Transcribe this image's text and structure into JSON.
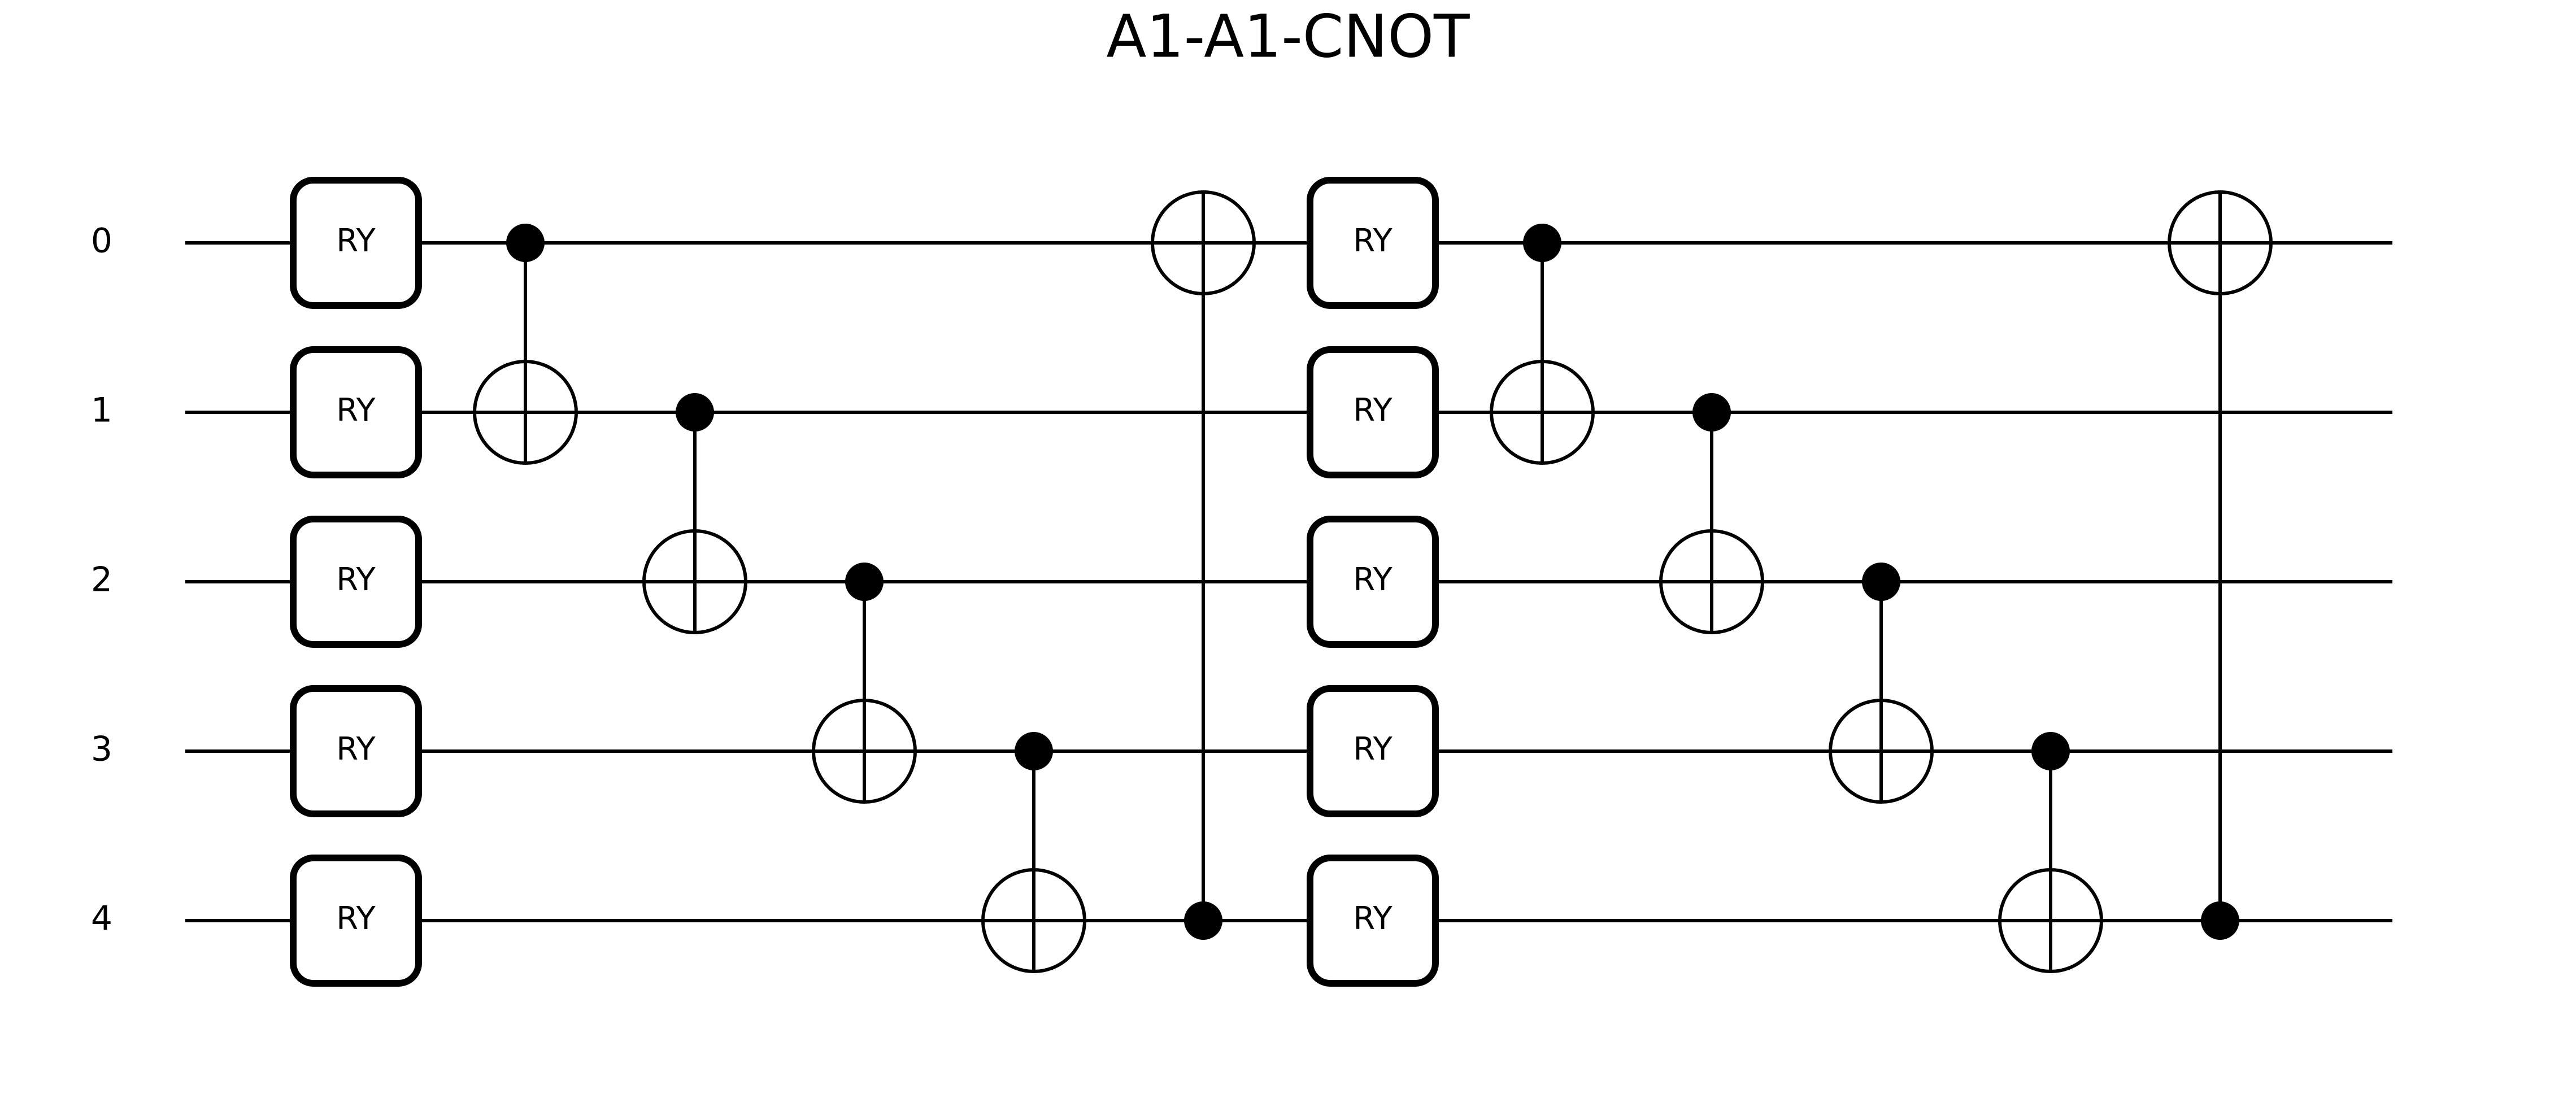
{
  "title": "A1-A1-CNOT",
  "wires": [
    "0",
    "1",
    "2",
    "3",
    "4"
  ],
  "gates": [
    {
      "type": "box",
      "label": "RY",
      "wires": [
        0,
        1,
        2,
        3,
        4
      ],
      "step": 0
    },
    {
      "type": "cnot",
      "control": 0,
      "target": 1,
      "step": 1
    },
    {
      "type": "cnot",
      "control": 1,
      "target": 2,
      "step": 2
    },
    {
      "type": "cnot",
      "control": 2,
      "target": 3,
      "step": 3
    },
    {
      "type": "cnot",
      "control": 3,
      "target": 4,
      "step": 4
    },
    {
      "type": "cnot",
      "control": 4,
      "target": 0,
      "step": 5
    },
    {
      "type": "box",
      "label": "RY",
      "wires": [
        0,
        1,
        2,
        3,
        4
      ],
      "step": 6
    },
    {
      "type": "cnot",
      "control": 0,
      "target": 1,
      "step": 7
    },
    {
      "type": "cnot",
      "control": 1,
      "target": 2,
      "step": 8
    },
    {
      "type": "cnot",
      "control": 2,
      "target": 3,
      "step": 9
    },
    {
      "type": "cnot",
      "control": 3,
      "target": 4,
      "step": 10
    },
    {
      "type": "cnot",
      "control": 4,
      "target": 0,
      "step": 11
    }
  ]
}
